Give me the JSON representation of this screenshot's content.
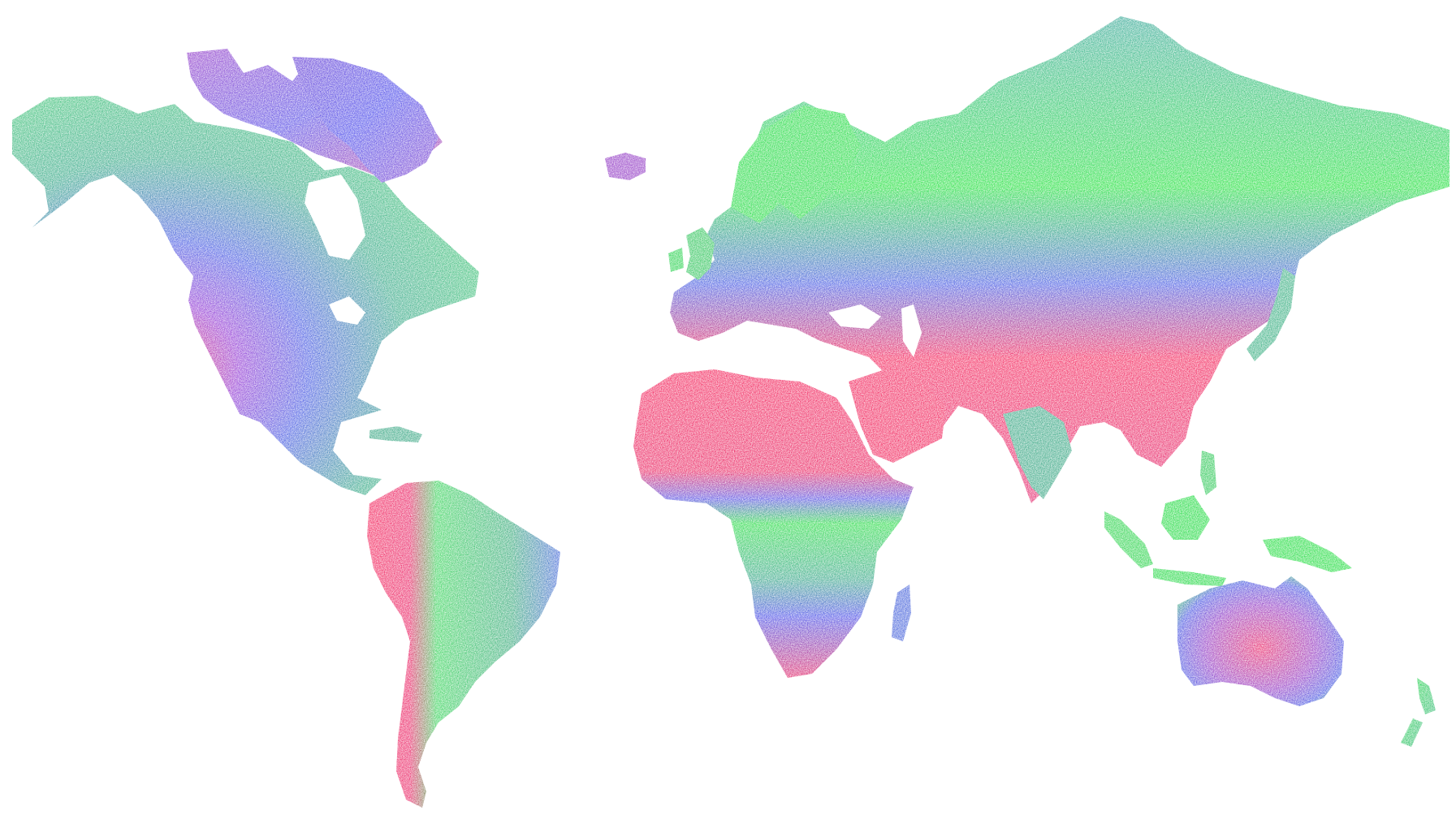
{
  "map": {
    "kind": "world-raster-map",
    "projection": "mercator-like",
    "background_color": "#ffffff",
    "palette": {
      "green": "#10e030",
      "teal": "#2ea37c",
      "blue": "#3a3ee6",
      "purple": "#7a2fc2",
      "red": "#f2124e"
    },
    "legend_visible": false,
    "labels_visible": false
  },
  "regions": [
    {
      "id": "north-america",
      "dominant": "teal-green"
    },
    {
      "id": "greenland",
      "dominant": "blue"
    },
    {
      "id": "iceland",
      "dominant": "purple"
    },
    {
      "id": "canadian-arctic",
      "dominant": "blue-purple"
    },
    {
      "id": "south-america",
      "dominant": "green"
    },
    {
      "id": "andes-patagonia",
      "dominant": "red"
    },
    {
      "id": "europe-russia",
      "dominant": "green"
    },
    {
      "id": "sahara-arabia",
      "dominant": "red"
    },
    {
      "id": "central-asia",
      "dominant": "red"
    },
    {
      "id": "central-africa",
      "dominant": "green"
    },
    {
      "id": "southern-africa",
      "dominant": "red-blue"
    },
    {
      "id": "southeast-asia",
      "dominant": "green"
    },
    {
      "id": "australia",
      "dominant": "purple-red"
    },
    {
      "id": "new-zealand",
      "dominant": "green"
    },
    {
      "id": "madagascar",
      "dominant": "blue-green"
    }
  ]
}
